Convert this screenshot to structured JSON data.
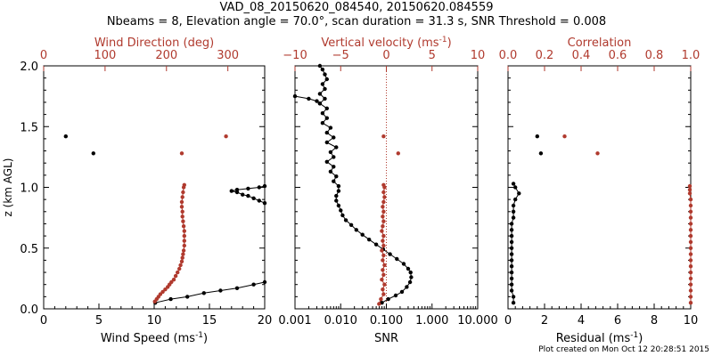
{
  "figure": {
    "title_line1": "VAD_08_20150620_084540, 20150620.084559",
    "title_line2": "Nbeams = 8, Elevation angle = 70.0°, scan duration = 31.3 s, SNR Threshold = 0.008",
    "footer": "Plot created on Mon Oct 12 20:28:51 2015",
    "colors": {
      "primary": "#000000",
      "secondary": "#b03a2e"
    }
  },
  "chart_data": [
    {
      "type": "line",
      "panel": "wind",
      "ylabel": "z (km AGL)",
      "ylim": [
        0,
        2.0
      ],
      "yticks": [
        "0.0",
        "0.5",
        "1.0",
        "1.5",
        "2.0"
      ],
      "bottom_axis": {
        "label": "Wind Speed (ms",
        "label_sup": "-1",
        "label_end": ")",
        "range": [
          0,
          20
        ],
        "ticks": [
          "0",
          "5",
          "10",
          "15",
          "20"
        ],
        "ticks_at": [
          0,
          5,
          10,
          15,
          20
        ]
      },
      "top_axis": {
        "label": "Wind Direction (deg)",
        "range": [
          0,
          360
        ],
        "color": "#b03a2e",
        "ticks": [
          "0",
          "100",
          "200",
          "300"
        ],
        "ticks_at": [
          0,
          100,
          200,
          300
        ]
      },
      "series": [
        {
          "axis": "bottom",
          "color": "#000000",
          "connect": true,
          "points": [
            [
              10.1,
              0.05
            ],
            [
              11.5,
              0.08
            ],
            [
              13.0,
              0.1
            ],
            [
              14.5,
              0.13
            ],
            [
              16.0,
              0.15
            ],
            [
              17.5,
              0.17
            ],
            [
              19.0,
              0.2
            ],
            [
              20.0,
              0.22
            ]
          ]
        },
        {
          "axis": "bottom",
          "color": "#000000",
          "connect": true,
          "points": [
            [
              20.0,
              0.87
            ],
            [
              19.5,
              0.89
            ],
            [
              19.0,
              0.91
            ],
            [
              18.5,
              0.93
            ],
            [
              18.0,
              0.94
            ],
            [
              17.5,
              0.96
            ],
            [
              17.0,
              0.97
            ],
            [
              17.5,
              0.98
            ],
            [
              18.5,
              0.99
            ],
            [
              19.5,
              1.0
            ],
            [
              20.0,
              1.01
            ]
          ]
        },
        {
          "axis": "bottom",
          "color": "#000000",
          "connect": false,
          "points": [
            [
              2.0,
              1.42
            ],
            [
              4.5,
              1.28
            ]
          ]
        },
        {
          "axis": "top",
          "color": "#b03a2e",
          "connect": true,
          "points": [
            [
              181,
              0.06
            ],
            [
              184,
              0.08
            ],
            [
              187,
              0.1
            ],
            [
              190,
              0.12
            ],
            [
              194,
              0.14
            ],
            [
              198,
              0.16
            ],
            [
              202,
              0.18
            ],
            [
              205,
              0.2
            ],
            [
              208,
              0.22
            ],
            [
              212,
              0.24
            ],
            [
              215,
              0.27
            ],
            [
              218,
              0.3
            ],
            [
              221,
              0.33
            ],
            [
              223,
              0.36
            ],
            [
              225,
              0.39
            ],
            [
              226,
              0.42
            ],
            [
              227,
              0.45
            ],
            [
              228,
              0.48
            ],
            [
              229,
              0.52
            ],
            [
              229,
              0.56
            ],
            [
              229,
              0.6
            ],
            [
              229,
              0.64
            ],
            [
              228,
              0.68
            ],
            [
              227,
              0.72
            ],
            [
              226,
              0.76
            ],
            [
              226,
              0.8
            ],
            [
              225,
              0.84
            ],
            [
              225,
              0.88
            ],
            [
              226,
              0.92
            ],
            [
              227,
              0.96
            ],
            [
              228,
              1.0
            ],
            [
              229,
              1.02
            ]
          ]
        },
        {
          "axis": "top",
          "color": "#b03a2e",
          "connect": false,
          "points": [
            [
              225,
              1.28
            ],
            [
              297,
              1.42
            ]
          ]
        }
      ]
    },
    {
      "type": "line",
      "panel": "vertical-velocity",
      "ylim": [
        0,
        2.0
      ],
      "bottom_axis": {
        "label": "SNR",
        "range": [
          0.001,
          10
        ],
        "scale": "log",
        "ticks": [
          "0.001",
          "0.010",
          "0.100",
          "1.000",
          "10.000"
        ],
        "ticks_at": [
          0.001,
          0.01,
          0.1,
          1,
          10
        ]
      },
      "top_axis": {
        "label": "Vertical velocity (ms",
        "label_sup": "-1",
        "label_end": ")",
        "range": [
          -10,
          10
        ],
        "color": "#b03a2e",
        "ticks": [
          "−10",
          "−5",
          "0",
          "5",
          "10"
        ],
        "ticks_at": [
          -10,
          -5,
          0,
          5,
          10
        ]
      },
      "zero_line": {
        "axis": "top",
        "value": 0,
        "color": "#b03a2e"
      },
      "series": [
        {
          "axis": "bottom",
          "color": "#000000",
          "connect": true,
          "points": [
            [
              0.08,
              0.05
            ],
            [
              0.11,
              0.08
            ],
            [
              0.16,
              0.11
            ],
            [
              0.22,
              0.14
            ],
            [
              0.28,
              0.18
            ],
            [
              0.33,
              0.22
            ],
            [
              0.35,
              0.26
            ],
            [
              0.34,
              0.3
            ],
            [
              0.3,
              0.33
            ],
            [
              0.24,
              0.37
            ],
            [
              0.17,
              0.41
            ],
            [
              0.12,
              0.45
            ],
            [
              0.085,
              0.49
            ],
            [
              0.06,
              0.53
            ],
            [
              0.042,
              0.57
            ],
            [
              0.03,
              0.61
            ],
            [
              0.022,
              0.65
            ],
            [
              0.017,
              0.69
            ],
            [
              0.013,
              0.73
            ],
            [
              0.011,
              0.77
            ],
            [
              0.01,
              0.81
            ],
            [
              0.009,
              0.85
            ],
            [
              0.008,
              0.89
            ],
            [
              0.008,
              0.93
            ],
            [
              0.009,
              0.97
            ],
            [
              0.009,
              1.01
            ],
            [
              0.007,
              1.05
            ],
            [
              0.008,
              1.09
            ],
            [
              0.006,
              1.13
            ],
            [
              0.007,
              1.17
            ],
            [
              0.005,
              1.21
            ],
            [
              0.007,
              1.25
            ],
            [
              0.006,
              1.29
            ],
            [
              0.008,
              1.33
            ],
            [
              0.005,
              1.37
            ],
            [
              0.007,
              1.41
            ],
            [
              0.005,
              1.45
            ],
            [
              0.006,
              1.49
            ],
            [
              0.004,
              1.53
            ],
            [
              0.005,
              1.57
            ],
            [
              0.004,
              1.61
            ],
            [
              0.005,
              1.65
            ],
            [
              0.0035,
              1.69
            ],
            [
              0.0045,
              1.73
            ],
            [
              0.0035,
              1.77
            ],
            [
              0.0045,
              1.81
            ],
            [
              0.004,
              1.85
            ],
            [
              0.005,
              1.89
            ],
            [
              0.0045,
              1.93
            ],
            [
              0.004,
              1.97
            ],
            [
              0.0035,
              2.0
            ]
          ]
        },
        {
          "axis": "bottom",
          "color": "#000000",
          "connect": true,
          "points": [
            [
              0.001,
              1.75
            ],
            [
              0.002,
              1.73
            ],
            [
              0.003,
              1.71
            ],
            [
              0.0035,
              1.69
            ]
          ]
        },
        {
          "axis": "top",
          "color": "#b03a2e",
          "connect": true,
          "points": [
            [
              -0.8,
              0.04
            ],
            [
              -0.6,
              0.08
            ],
            [
              -0.3,
              0.12
            ],
            [
              -0.4,
              0.16
            ],
            [
              -0.2,
              0.2
            ],
            [
              -0.5,
              0.24
            ],
            [
              -0.3,
              0.28
            ],
            [
              -0.4,
              0.32
            ],
            [
              -0.2,
              0.36
            ],
            [
              -0.4,
              0.4
            ],
            [
              -0.3,
              0.44
            ],
            [
              -0.5,
              0.48
            ],
            [
              -0.3,
              0.52
            ],
            [
              -0.4,
              0.56
            ],
            [
              -0.3,
              0.6
            ],
            [
              -0.5,
              0.64
            ],
            [
              -0.4,
              0.68
            ],
            [
              -0.3,
              0.72
            ],
            [
              -0.4,
              0.76
            ],
            [
              -0.3,
              0.8
            ],
            [
              -0.4,
              0.84
            ],
            [
              -0.3,
              0.88
            ],
            [
              -0.2,
              0.92
            ],
            [
              -0.3,
              0.96
            ],
            [
              -0.2,
              1.0
            ],
            [
              -0.3,
              1.02
            ]
          ]
        },
        {
          "axis": "top",
          "color": "#b03a2e",
          "connect": false,
          "points": [
            [
              -0.3,
              1.42
            ],
            [
              1.3,
              1.28
            ]
          ]
        }
      ]
    },
    {
      "type": "line",
      "panel": "correlation",
      "ylim": [
        0,
        2.0
      ],
      "bottom_axis": {
        "label": "Residual (ms",
        "label_sup": "-1",
        "label_end": ")",
        "range": [
          0,
          10
        ],
        "ticks": [
          "0",
          "2",
          "4",
          "6",
          "8",
          "10"
        ],
        "ticks_at": [
          0,
          2,
          4,
          6,
          8,
          10
        ]
      },
      "top_axis": {
        "label": "Correlation",
        "range": [
          0,
          1.0
        ],
        "color": "#b03a2e",
        "ticks": [
          "0.0",
          "0.2",
          "0.4",
          "0.6",
          "0.8",
          "1.0"
        ],
        "ticks_at": [
          0,
          0.2,
          0.4,
          0.6,
          0.8,
          1.0
        ]
      },
      "series": [
        {
          "axis": "bottom",
          "color": "#000000",
          "connect": true,
          "points": [
            [
              0.3,
              0.05
            ],
            [
              0.3,
              0.1
            ],
            [
              0.2,
              0.15
            ],
            [
              0.2,
              0.2
            ],
            [
              0.2,
              0.25
            ],
            [
              0.2,
              0.3
            ],
            [
              0.2,
              0.35
            ],
            [
              0.2,
              0.4
            ],
            [
              0.2,
              0.45
            ],
            [
              0.2,
              0.5
            ],
            [
              0.2,
              0.55
            ],
            [
              0.2,
              0.6
            ],
            [
              0.2,
              0.65
            ],
            [
              0.2,
              0.7
            ],
            [
              0.3,
              0.75
            ],
            [
              0.3,
              0.8
            ],
            [
              0.3,
              0.85
            ],
            [
              0.4,
              0.9
            ],
            [
              0.6,
              0.95
            ],
            [
              0.4,
              1.0
            ],
            [
              0.3,
              1.03
            ]
          ]
        },
        {
          "axis": "bottom",
          "color": "#000000",
          "connect": false,
          "points": [
            [
              1.6,
              1.42
            ],
            [
              1.8,
              1.28
            ]
          ]
        },
        {
          "axis": "top",
          "color": "#b03a2e",
          "connect": true,
          "points": [
            [
              1.0,
              0.05
            ],
            [
              1.0,
              0.1
            ],
            [
              1.0,
              0.15
            ],
            [
              1.0,
              0.2
            ],
            [
              1.0,
              0.25
            ],
            [
              1.0,
              0.3
            ],
            [
              1.0,
              0.35
            ],
            [
              1.0,
              0.4
            ],
            [
              1.0,
              0.45
            ],
            [
              1.0,
              0.5
            ],
            [
              1.0,
              0.55
            ],
            [
              1.0,
              0.6
            ],
            [
              1.0,
              0.65
            ],
            [
              1.0,
              0.7
            ],
            [
              1.0,
              0.75
            ],
            [
              1.0,
              0.8
            ],
            [
              1.0,
              0.85
            ],
            [
              1.0,
              0.9
            ],
            [
              0.995,
              0.95
            ],
            [
              0.995,
              0.98
            ],
            [
              0.995,
              1.01
            ]
          ]
        },
        {
          "axis": "top",
          "color": "#b03a2e",
          "connect": false,
          "points": [
            [
              0.31,
              1.42
            ],
            [
              0.49,
              1.28
            ]
          ]
        }
      ]
    }
  ]
}
